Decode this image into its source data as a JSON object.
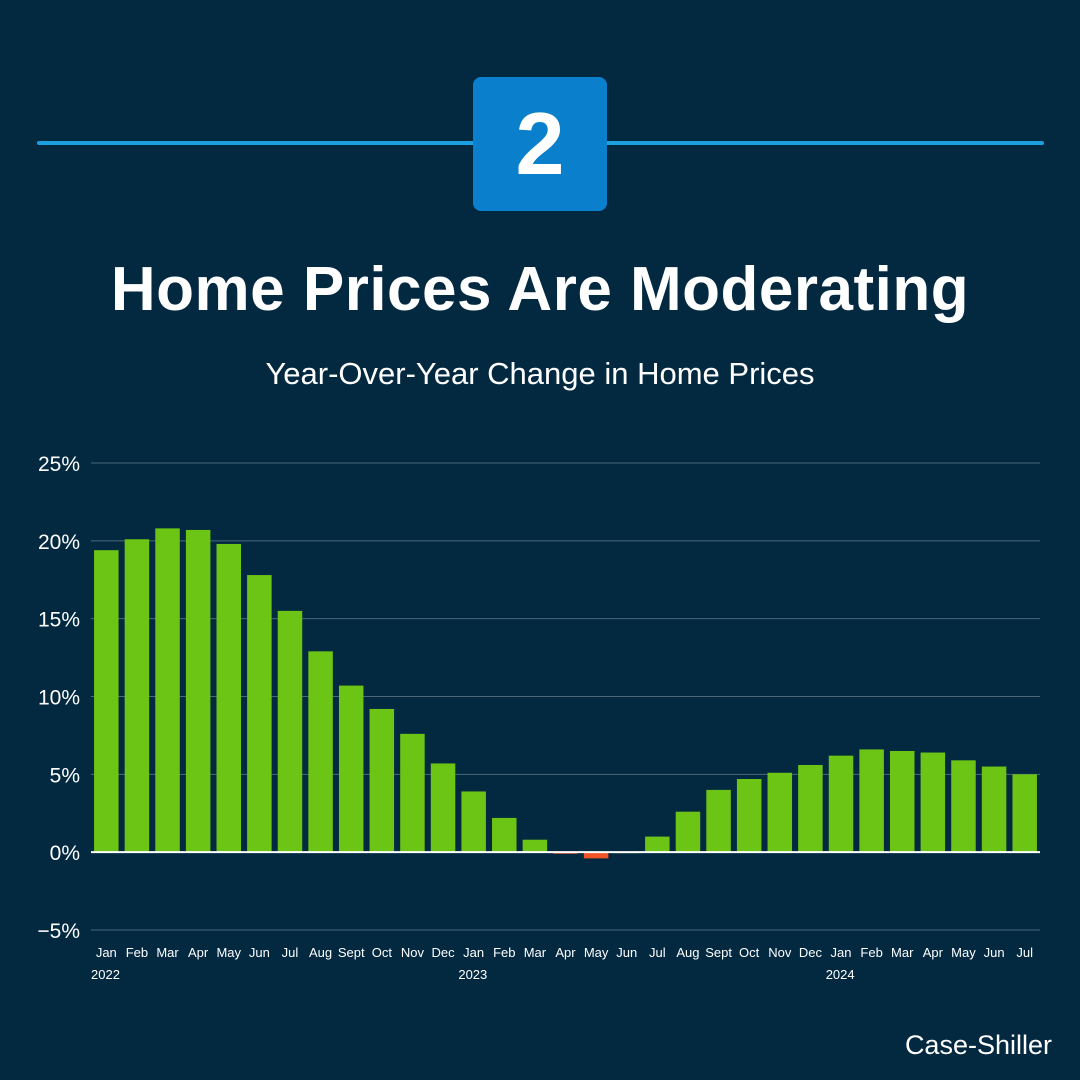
{
  "badge": {
    "number": "2"
  },
  "header": {
    "title": "Home Prices Are Moderating",
    "subtitle": "Year-Over-Year Change in Home Prices"
  },
  "source": "Case-Shiller",
  "colors": {
    "background": "#032941",
    "positive_bar": "#6cc514",
    "negative_bar": "#f0552a",
    "accent_line": "#1a9fe0",
    "badge": "#0a7fcb"
  },
  "chart_data": {
    "type": "bar",
    "title": "Year-Over-Year Change in Home Prices",
    "xlabel": "",
    "ylabel": "",
    "ylim": [
      -5,
      25
    ],
    "yticks": [
      25,
      20,
      15,
      10,
      5,
      0,
      -5
    ],
    "ytick_labels": [
      "25%",
      "20%",
      "15%",
      "10%",
      "5%",
      "0%",
      "−5%"
    ],
    "grid": true,
    "categories": [
      "Jan",
      "Feb",
      "Mar",
      "Apr",
      "May",
      "Jun",
      "Jul",
      "Aug",
      "Sept",
      "Oct",
      "Nov",
      "Dec",
      "Jan",
      "Feb",
      "Mar",
      "Apr",
      "May",
      "Jun",
      "Jul",
      "Aug",
      "Sept",
      "Oct",
      "Nov",
      "Dec",
      "Jan",
      "Feb",
      "Mar",
      "Apr",
      "May",
      "Jun",
      "Jul"
    ],
    "year_labels": [
      {
        "index": 0,
        "label": "2022"
      },
      {
        "index": 12,
        "label": "2023"
      },
      {
        "index": 24,
        "label": "2024"
      }
    ],
    "values": [
      19.4,
      20.1,
      20.8,
      20.7,
      19.8,
      17.8,
      15.5,
      12.9,
      10.7,
      9.2,
      7.6,
      5.7,
      3.9,
      2.2,
      0.8,
      -0.1,
      -0.4,
      0.0,
      1.0,
      2.6,
      4.0,
      4.7,
      5.1,
      5.6,
      6.2,
      6.6,
      6.5,
      6.4,
      5.9,
      5.5,
      5.0
    ]
  }
}
